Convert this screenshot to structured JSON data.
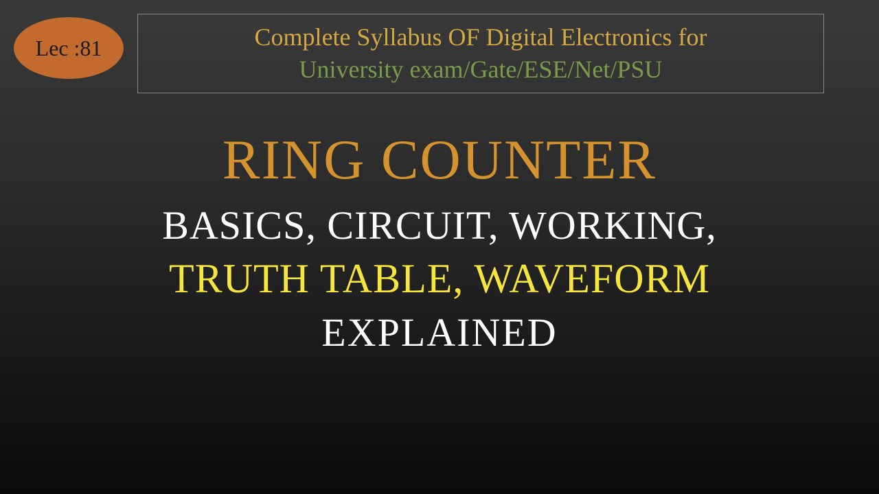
{
  "lecture_badge": {
    "text": "Lec :81",
    "background_color": "#c36b2e",
    "text_color": "#1a1a1a",
    "fontsize": 32
  },
  "syllabus_box": {
    "line1": "Complete Syllabus OF Digital Electronics for",
    "line1_color": "#d4a943",
    "line2": "University exam/Gate/ESE/Net/PSU",
    "line2_color": "#7a9b4a",
    "border_color": "#888888",
    "fontsize": 36
  },
  "main_title": {
    "text": "RING COUNTER",
    "color": "#d4932e",
    "fontsize": 82
  },
  "subtitle1": {
    "text": "BASICS, CIRCUIT, WORKING,",
    "color": "#ffffff",
    "fontsize": 58
  },
  "subtitle2": {
    "text": "TRUTH TABLE, WAVEFORM",
    "color": "#f5e53c",
    "fontsize": 60
  },
  "subtitle3": {
    "text": "EXPLAINED",
    "color": "#ffffff",
    "fontsize": 58
  },
  "background": {
    "gradient_top": "#3a3a3a",
    "gradient_bottom": "#0a0a0a"
  }
}
